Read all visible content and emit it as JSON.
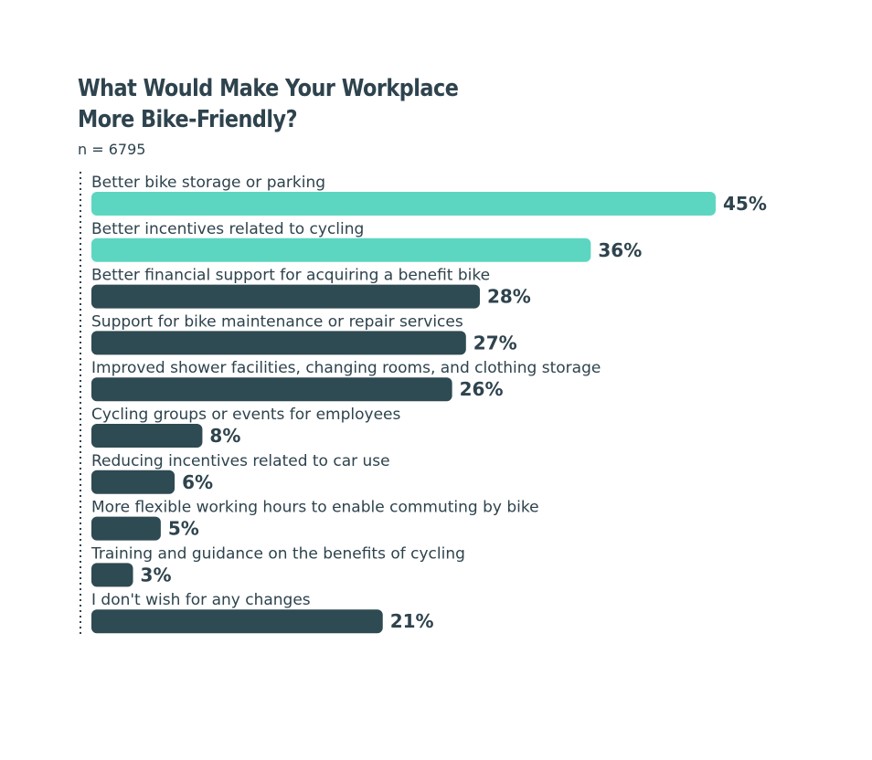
{
  "header": {
    "title_line1": "What Would Make Your Workplace",
    "title_line2": "More Bike-Friendly?",
    "sample_size": "n = 6795"
  },
  "colors": {
    "highlight": "#5dd6c1",
    "default": "#2e4a52",
    "text": "#2e434d"
  },
  "chart_data": {
    "type": "bar",
    "orientation": "horizontal",
    "title": "What Would Make Your Workplace More Bike-Friendly?",
    "subtitle": "n = 6795",
    "value_suffix": "%",
    "xlim": [
      0,
      100
    ],
    "grid": false,
    "categories": [
      "Better bike storage or parking",
      "Better incentives related to cycling",
      "Better financial support for acquiring a benefit bike",
      "Support for bike maintenance or repair services",
      "Improved shower facilities, changing rooms, and clothing storage",
      "Cycling groups or events for employees",
      "Reducing incentives related to car use",
      "More flexible working hours to enable commuting by bike",
      "Training and guidance on the benefits of cycling",
      "I don't wish for any changes"
    ],
    "values": [
      45,
      36,
      28,
      27,
      26,
      8,
      6,
      5,
      3,
      21
    ],
    "value_labels": [
      "45%",
      "36%",
      "28%",
      "27%",
      "26%",
      "8%",
      "6%",
      "5%",
      "3%",
      "21%"
    ],
    "highlighted": [
      true,
      true,
      false,
      false,
      false,
      false,
      false,
      false,
      false,
      false
    ]
  }
}
